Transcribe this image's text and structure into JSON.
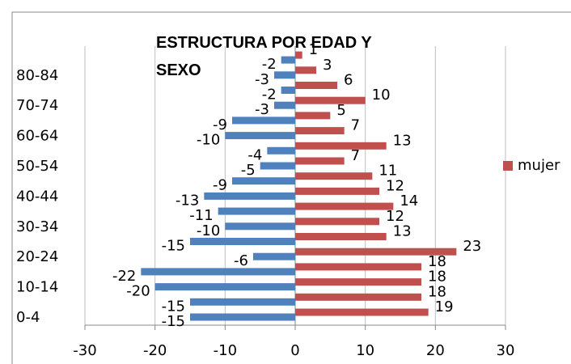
{
  "chart_data": {
    "type": "bar",
    "orientation": "horizontal",
    "title": "ESTRUCTURA POR EDAD Y SEXO",
    "categories": [
      "0-4",
      null,
      "10-14",
      null,
      "20-24",
      null,
      "30-34",
      null,
      "40-44",
      null,
      "50-54",
      null,
      "60-64",
      null,
      "70-74",
      null,
      "80-84",
      null
    ],
    "series": [
      {
        "color": "#4f81bd",
        "values": [
          -15,
          -15,
          -20,
          -22,
          -6,
          -15,
          -10,
          -11,
          -13,
          -9,
          -5,
          -4,
          -10,
          -9,
          -3,
          -2,
          -3,
          -2
        ]
      },
      {
        "name": "mujer",
        "color": "#c0504d",
        "values": [
          19,
          18,
          18,
          18,
          23,
          13,
          12,
          14,
          12,
          11,
          7,
          13,
          7,
          5,
          10,
          6,
          3,
          1
        ]
      }
    ],
    "xlim": [
      -30,
      30
    ],
    "xticks": [
      -30,
      -20,
      -10,
      0,
      10,
      20,
      30
    ],
    "grid": true,
    "legend": "right"
  }
}
